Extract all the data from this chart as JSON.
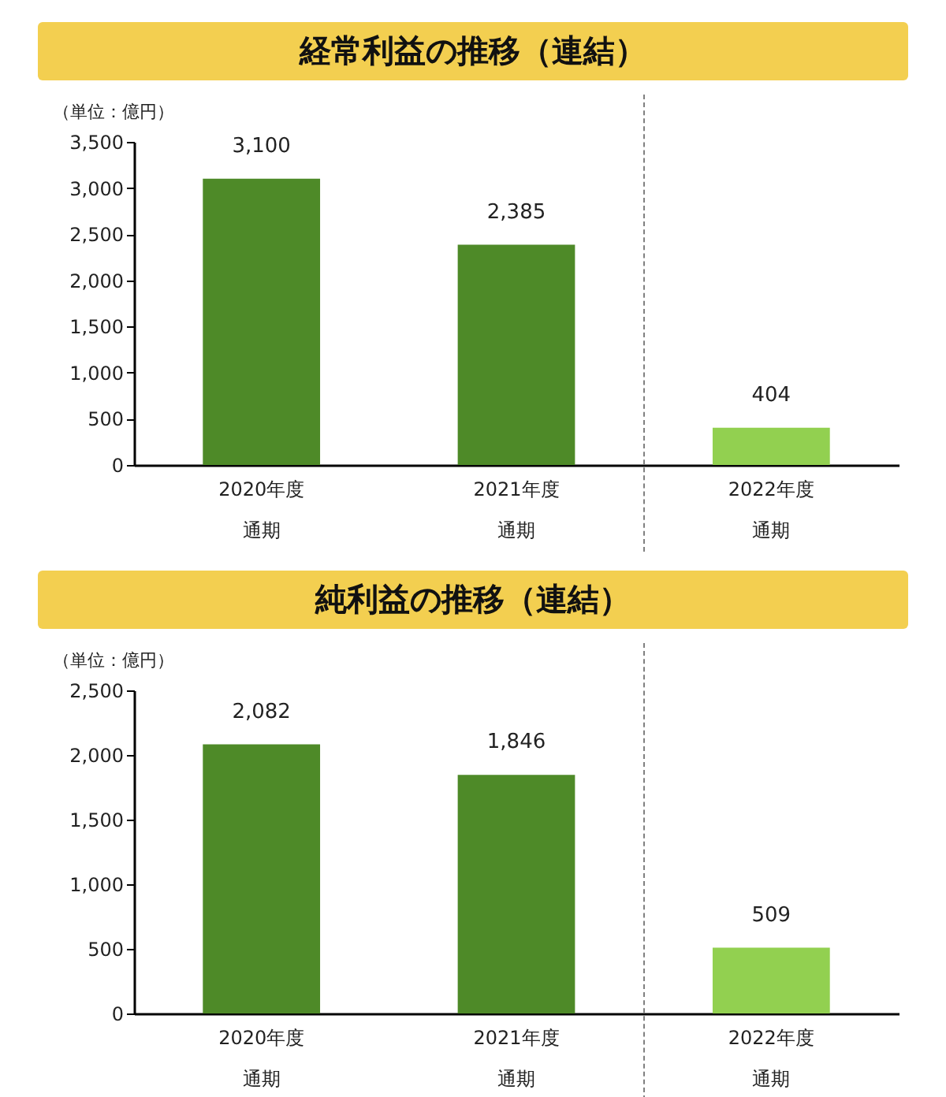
{
  "chart_data": [
    {
      "type": "bar",
      "title": "経常利益の推移（連結）",
      "ylabel": "（単位：億円）",
      "categories": [
        "2020年度通期",
        "2021年度通期",
        "2022年度通期"
      ],
      "values": [
        3100,
        2385,
        404
      ],
      "colors": [
        "#4e8a28",
        "#4e8a28",
        "#92d050"
      ],
      "ylim": [
        0,
        3500
      ],
      "yticks": [
        {
          "value": 0,
          "label": "0"
        },
        {
          "value": 500,
          "label": "500"
        },
        {
          "value": 1000,
          "label": "1,000"
        },
        {
          "value": 1500,
          "label": "1,500"
        },
        {
          "value": 2000,
          "label": "2,000"
        },
        {
          "value": 2500,
          "label": "2,500"
        },
        {
          "value": 3000,
          "label": "3,000"
        },
        {
          "value": 3500,
          "label": "3,500"
        }
      ],
      "value_labels": [
        "3,100",
        "2,385",
        "404"
      ],
      "grid": false
    },
    {
      "type": "bar",
      "title": "純利益の推移（連結）",
      "ylabel": "（単位：億円）",
      "categories": [
        "2020年度通期",
        "2021年度通期",
        "2022年度通期"
      ],
      "values": [
        2082,
        1846,
        509
      ],
      "colors": [
        "#4e8a28",
        "#4e8a28",
        "#92d050"
      ],
      "ylim": [
        0,
        2500
      ],
      "yticks": [
        {
          "value": 0,
          "label": "0"
        },
        {
          "value": 500,
          "label": "500"
        },
        {
          "value": 1000,
          "label": "1,000"
        },
        {
          "value": 1500,
          "label": "1,500"
        },
        {
          "value": 2000,
          "label": "2,000"
        },
        {
          "value": 2500,
          "label": "2,500"
        }
      ],
      "value_labels": [
        "2,082",
        "1,846",
        "509"
      ],
      "grid": false
    }
  ]
}
